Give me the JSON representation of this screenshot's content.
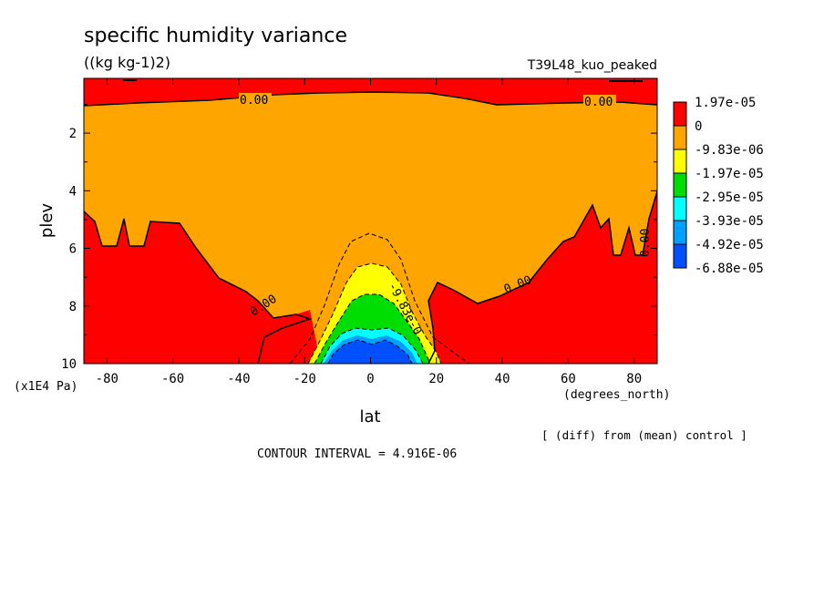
{
  "chart_data": {
    "type": "heatmap",
    "title": "specific humidity variance",
    "units": "((kg kg-1)2)",
    "run_label": "T39L48_kuo_peaked",
    "xlabel": "lat",
    "xunits": "(degrees_north)",
    "ylabel": "plev",
    "yunits": "(x1E4 Pa)",
    "xlim": [
      -87,
      87
    ],
    "ylim": [
      10,
      0.1
    ],
    "xticks": [
      -80,
      -60,
      -40,
      -20,
      0,
      20,
      40,
      60,
      80
    ],
    "xtick_labels": [
      "-80",
      "-60",
      "-40",
      "-20",
      "0",
      "20",
      "40",
      "60",
      "80"
    ],
    "yticks": [
      2,
      4,
      6,
      8,
      10
    ],
    "ytick_labels": [
      "2",
      "4",
      "6",
      "8",
      "10"
    ],
    "legend_levels": [
      {
        "label": "1.97e-05",
        "color": "#ff0000"
      },
      {
        "label": "0",
        "color": "#ffa500"
      },
      {
        "label": "-9.83e-06",
        "color": "#ffff00"
      },
      {
        "label": "-1.97e-05",
        "color": "#00dd00"
      },
      {
        "label": "-2.95e-05",
        "color": "#00ffff"
      },
      {
        "label": "-3.93e-05",
        "color": "#00a0ff"
      },
      {
        "label": "-4.92e-05",
        "color": "#0050ff"
      },
      {
        "label": "-6.88e-05",
        "color": "#000000"
      }
    ],
    "contour_labels": [
      "0.00",
      "0.00",
      "0.00",
      "0.00",
      "-9.83e-0",
      "0.00"
    ],
    "note": "[ (diff) from (mean) control ]",
    "contour_interval": "CONTOUR INTERVAL = 4.916E-06",
    "legend_position": "right"
  }
}
